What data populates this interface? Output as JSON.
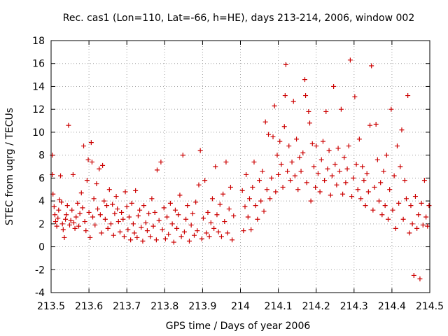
{
  "chart_data": {
    "type": "scatter",
    "title": "Rec. cas1 (Lon=110, Lat=-66, h=HE), days 213-214, 2006, window 002",
    "xlabel": "GPS time / Days of year 2006",
    "ylabel": "STEC from uqrg / TECUs",
    "xlim": [
      213.5,
      214.5
    ],
    "ylim": [
      -4,
      18
    ],
    "xticks": [
      213.5,
      213.6,
      213.7,
      213.8,
      213.9,
      214,
      214.1,
      214.2,
      214.3,
      214.4,
      214.5
    ],
    "xtick_labels": [
      "213.5",
      "213.6",
      "213.7",
      "213.8",
      "213.9",
      "214",
      "214.1",
      "214.2",
      "214.3",
      "214.4",
      "214.5"
    ],
    "yticks": [
      -4,
      -2,
      0,
      2,
      4,
      6,
      8,
      10,
      12,
      14,
      16,
      18
    ],
    "ytick_labels": [
      "-4",
      "-2",
      "0",
      "2",
      "4",
      "6",
      "8",
      "10",
      "12",
      "14",
      "16",
      "18"
    ],
    "grid": true,
    "marker": "+",
    "color": "#cc0000",
    "points": [
      [
        213.503,
        8.0
      ],
      [
        213.503,
        6.3
      ],
      [
        213.505,
        4.6
      ],
      [
        213.508,
        3.5
      ],
      [
        213.51,
        2.8
      ],
      [
        213.512,
        2.2
      ],
      [
        213.515,
        1.8
      ],
      [
        213.518,
        2.5
      ],
      [
        213.52,
        3.2
      ],
      [
        213.522,
        4.1
      ],
      [
        213.525,
        6.2
      ],
      [
        213.527,
        3.9
      ],
      [
        213.53,
        2.0
      ],
      [
        213.532,
        1.5
      ],
      [
        213.535,
        0.8
      ],
      [
        213.538,
        2.4
      ],
      [
        213.54,
        2.8
      ],
      [
        213.543,
        3.6
      ],
      [
        213.546,
        10.6
      ],
      [
        213.549,
        1.9
      ],
      [
        213.552,
        2.3
      ],
      [
        213.555,
        3.2
      ],
      [
        213.558,
        6.3
      ],
      [
        213.56,
        2.1
      ],
      [
        213.563,
        1.6
      ],
      [
        213.566,
        2.6
      ],
      [
        213.57,
        3.8
      ],
      [
        213.573,
        1.8
      ],
      [
        213.576,
        2.9
      ],
      [
        213.58,
        4.7
      ],
      [
        213.583,
        3.4
      ],
      [
        213.586,
        8.8
      ],
      [
        213.589,
        2.2
      ],
      [
        213.592,
        1.4
      ],
      [
        213.595,
        5.8
      ],
      [
        213.598,
        7.6
      ],
      [
        213.6,
        3.0
      ],
      [
        213.603,
        0.8
      ],
      [
        213.606,
        9.1
      ],
      [
        213.608,
        7.4
      ],
      [
        213.61,
        2.6
      ],
      [
        213.613,
        4.2
      ],
      [
        213.616,
        1.9
      ],
      [
        213.62,
        5.5
      ],
      [
        213.623,
        3.3
      ],
      [
        213.627,
        6.8
      ],
      [
        213.63,
        2.8
      ],
      [
        213.633,
        1.2
      ],
      [
        213.636,
        7.1
      ],
      [
        213.64,
        4.0
      ],
      [
        213.643,
        2.4
      ],
      [
        213.647,
        3.6
      ],
      [
        213.65,
        1.6
      ],
      [
        213.654,
        5.0
      ],
      [
        213.658,
        2.0
      ],
      [
        213.662,
        3.7
      ],
      [
        213.665,
        1.0
      ],
      [
        213.668,
        2.9
      ],
      [
        213.672,
        4.4
      ],
      [
        213.675,
        3.3
      ],
      [
        213.678,
        2.2
      ],
      [
        213.682,
        1.3
      ],
      [
        213.686,
        3.0
      ],
      [
        213.69,
        2.4
      ],
      [
        213.693,
        0.9
      ],
      [
        213.696,
        4.8
      ],
      [
        213.7,
        3.5
      ],
      [
        213.703,
        1.5
      ],
      [
        213.706,
        2.6
      ],
      [
        213.71,
        0.6
      ],
      [
        213.713,
        3.8
      ],
      [
        213.717,
        2.0
      ],
      [
        213.72,
        1.2
      ],
      [
        213.723,
        4.9
      ],
      [
        213.727,
        0.8
      ],
      [
        213.73,
        2.7
      ],
      [
        213.734,
        3.2
      ],
      [
        213.738,
        1.7
      ],
      [
        213.742,
        0.5
      ],
      [
        213.745,
        3.6
      ],
      [
        213.75,
        2.1
      ],
      [
        213.754,
        1.4
      ],
      [
        213.758,
        2.9
      ],
      [
        213.762,
        0.9
      ],
      [
        213.766,
        4.2
      ],
      [
        213.77,
        1.8
      ],
      [
        213.774,
        3.0
      ],
      [
        213.778,
        0.6
      ],
      [
        213.78,
        6.7
      ],
      [
        213.785,
        2.3
      ],
      [
        213.79,
        7.4
      ],
      [
        213.794,
        1.5
      ],
      [
        213.798,
        3.4
      ],
      [
        213.802,
        0.7
      ],
      [
        213.806,
        2.6
      ],
      [
        213.81,
        1.1
      ],
      [
        213.815,
        3.8
      ],
      [
        213.82,
        2.0
      ],
      [
        213.824,
        0.4
      ],
      [
        213.828,
        3.2
      ],
      [
        213.832,
        1.6
      ],
      [
        213.836,
        2.8
      ],
      [
        213.84,
        4.5
      ],
      [
        213.844,
        0.9
      ],
      [
        213.848,
        8.0
      ],
      [
        213.852,
        1.3
      ],
      [
        213.856,
        2.4
      ],
      [
        213.86,
        3.6
      ],
      [
        213.865,
        0.5
      ],
      [
        213.87,
        1.9
      ],
      [
        213.874,
        2.9
      ],
      [
        213.878,
        1.0
      ],
      [
        213.882,
        3.9
      ],
      [
        213.886,
        1.4
      ],
      [
        213.89,
        5.4
      ],
      [
        213.894,
        8.4
      ],
      [
        213.898,
        0.7
      ],
      [
        213.902,
        2.5
      ],
      [
        213.906,
        5.8
      ],
      [
        213.91,
        1.2
      ],
      [
        213.914,
        3.0
      ],
      [
        213.918,
        0.9
      ],
      [
        213.922,
        2.1
      ],
      [
        213.926,
        4.2
      ],
      [
        213.93,
        1.6
      ],
      [
        213.934,
        7.0
      ],
      [
        213.938,
        2.8
      ],
      [
        213.942,
        1.3
      ],
      [
        213.946,
        3.7
      ],
      [
        213.95,
        0.9
      ],
      [
        213.954,
        4.6
      ],
      [
        213.958,
        2.2
      ],
      [
        213.962,
        7.4
      ],
      [
        213.966,
        1.2
      ],
      [
        213.97,
        3.3
      ],
      [
        213.974,
        5.2
      ],
      [
        213.978,
        0.6
      ],
      [
        213.982,
        2.7
      ],
      [
        214.005,
        4.9
      ],
      [
        214.008,
        1.4
      ],
      [
        214.012,
        3.5
      ],
      [
        214.015,
        6.3
      ],
      [
        214.02,
        2.6
      ],
      [
        214.024,
        4.2
      ],
      [
        214.028,
        1.5
      ],
      [
        214.032,
        5.2
      ],
      [
        214.036,
        7.4
      ],
      [
        214.04,
        3.6
      ],
      [
        214.045,
        2.4
      ],
      [
        214.05,
        5.8
      ],
      [
        214.054,
        4.0
      ],
      [
        214.058,
        6.6
      ],
      [
        214.062,
        3.1
      ],
      [
        214.066,
        10.9
      ],
      [
        214.07,
        5.0
      ],
      [
        214.074,
        9.8
      ],
      [
        214.078,
        4.2
      ],
      [
        214.082,
        6.0
      ],
      [
        214.086,
        9.6
      ],
      [
        214.09,
        12.3
      ],
      [
        214.093,
        4.8
      ],
      [
        214.097,
        8.0
      ],
      [
        214.1,
        6.3
      ],
      [
        214.104,
        9.2
      ],
      [
        214.108,
        7.2
      ],
      [
        214.112,
        5.2
      ],
      [
        214.116,
        10.5
      ],
      [
        214.118,
        13.2
      ],
      [
        214.12,
        15.9
      ],
      [
        214.124,
        6.6
      ],
      [
        214.128,
        8.8
      ],
      [
        214.132,
        5.8
      ],
      [
        214.136,
        7.4
      ],
      [
        214.14,
        12.7
      ],
      [
        214.144,
        6.2
      ],
      [
        214.148,
        9.4
      ],
      [
        214.152,
        5.0
      ],
      [
        214.156,
        7.8
      ],
      [
        214.16,
        6.6
      ],
      [
        214.165,
        8.2
      ],
      [
        214.17,
        14.6
      ],
      [
        214.172,
        13.2
      ],
      [
        214.175,
        5.6
      ],
      [
        214.18,
        11.8
      ],
      [
        214.183,
        10.8
      ],
      [
        214.186,
        4.0
      ],
      [
        214.19,
        9.0
      ],
      [
        214.194,
        7.0
      ],
      [
        214.198,
        5.2
      ],
      [
        214.2,
        8.8
      ],
      [
        214.205,
        6.4
      ],
      [
        214.21,
        4.8
      ],
      [
        214.214,
        7.6
      ],
      [
        214.218,
        9.2
      ],
      [
        214.222,
        5.8
      ],
      [
        214.226,
        11.8
      ],
      [
        214.23,
        6.8
      ],
      [
        214.234,
        8.4
      ],
      [
        214.238,
        4.5
      ],
      [
        214.242,
        6.2
      ],
      [
        214.246,
        14.0
      ],
      [
        214.25,
        7.2
      ],
      [
        214.254,
        5.4
      ],
      [
        214.258,
        8.6
      ],
      [
        214.262,
        6.6
      ],
      [
        214.266,
        12.0
      ],
      [
        214.27,
        4.6
      ],
      [
        214.274,
        7.8
      ],
      [
        214.278,
        5.6
      ],
      [
        214.282,
        6.8
      ],
      [
        214.286,
        8.8
      ],
      [
        214.29,
        16.3
      ],
      [
        214.294,
        4.4
      ],
      [
        214.298,
        6.0
      ],
      [
        214.302,
        13.1
      ],
      [
        214.306,
        7.2
      ],
      [
        214.31,
        5.0
      ],
      [
        214.314,
        9.4
      ],
      [
        214.318,
        4.2
      ],
      [
        214.322,
        7.0
      ],
      [
        214.326,
        5.8
      ],
      [
        214.33,
        3.6
      ],
      [
        214.334,
        6.4
      ],
      [
        214.338,
        4.8
      ],
      [
        214.342,
        10.6
      ],
      [
        214.346,
        15.8
      ],
      [
        214.35,
        3.2
      ],
      [
        214.354,
        5.2
      ],
      [
        214.358,
        10.7
      ],
      [
        214.362,
        7.6
      ],
      [
        214.366,
        4.0
      ],
      [
        214.37,
        5.6
      ],
      [
        214.374,
        2.8
      ],
      [
        214.378,
        6.6
      ],
      [
        214.382,
        3.6
      ],
      [
        214.386,
        8.0
      ],
      [
        214.39,
        2.4
      ],
      [
        214.394,
        5.0
      ],
      [
        214.398,
        12.0
      ],
      [
        214.402,
        3.2
      ],
      [
        214.406,
        6.2
      ],
      [
        214.41,
        1.6
      ],
      [
        214.414,
        8.8
      ],
      [
        214.418,
        3.8
      ],
      [
        214.422,
        7.0
      ],
      [
        214.426,
        10.2
      ],
      [
        214.43,
        2.4
      ],
      [
        214.434,
        5.8
      ],
      [
        214.438,
        4.2
      ],
      [
        214.442,
        13.2
      ],
      [
        214.446,
        1.2
      ],
      [
        214.45,
        3.6
      ],
      [
        214.454,
        2.0
      ],
      [
        214.458,
        -2.5
      ],
      [
        214.462,
        4.4
      ],
      [
        214.466,
        1.6
      ],
      [
        214.47,
        2.8
      ],
      [
        214.474,
        -2.8
      ],
      [
        214.478,
        3.8
      ],
      [
        214.482,
        1.9
      ],
      [
        214.486,
        5.8
      ],
      [
        214.49,
        2.6
      ],
      [
        214.494,
        1.8
      ],
      [
        214.498,
        3.6
      ]
    ]
  }
}
